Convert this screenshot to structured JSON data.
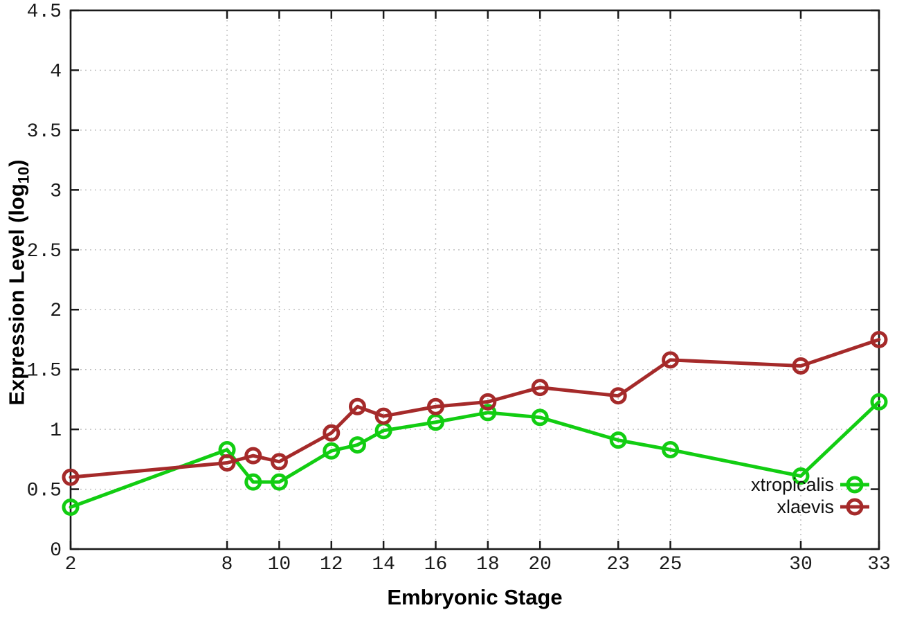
{
  "chart_data": {
    "type": "line",
    "title": "",
    "xlabel": "Embryonic Stage",
    "ylabel": {
      "text": "Expression Level (log",
      "sub": "10",
      "suffix": ")"
    },
    "xlim": [
      2,
      33
    ],
    "ylim": [
      0,
      4.5
    ],
    "x_ticks": [
      2,
      8,
      10,
      12,
      14,
      16,
      18,
      20,
      23,
      25,
      30,
      33
    ],
    "y_ticks": [
      0,
      0.5,
      1,
      1.5,
      2,
      2.5,
      3,
      3.5,
      4,
      4.5
    ],
    "grid": true,
    "legend_position": "inside-bottom-right",
    "x": [
      2,
      8,
      9,
      10,
      12,
      13,
      14,
      16,
      18,
      20,
      23,
      25,
      30,
      33
    ],
    "series": [
      {
        "name": "xtropicalis",
        "color": "#12cd12",
        "values": [
          0.35,
          0.83,
          0.56,
          0.56,
          0.82,
          0.87,
          0.99,
          1.06,
          1.14,
          1.1,
          0.91,
          0.83,
          0.61,
          1.23
        ]
      },
      {
        "name": "xlaevis",
        "color": "#a52a2a",
        "values": [
          0.6,
          0.72,
          0.78,
          0.73,
          0.97,
          1.19,
          1.11,
          1.19,
          1.23,
          1.35,
          1.28,
          1.58,
          1.53,
          1.75
        ]
      }
    ],
    "frame_color": "#1a1a1a",
    "grid_color": "#bcbcbc",
    "background": "#ffffff"
  }
}
